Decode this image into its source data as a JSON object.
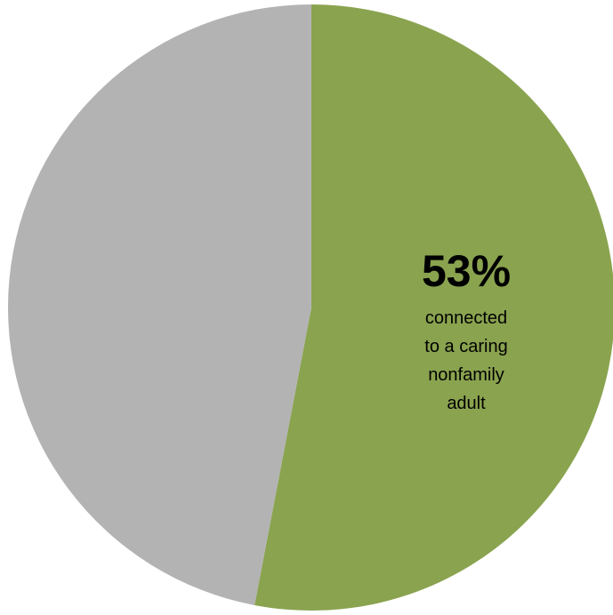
{
  "chart_data": {
    "type": "pie",
    "slices": [
      {
        "value": 53,
        "color": "#8aa34f",
        "value_label": "53%",
        "description": [
          "connected",
          "to a caring",
          "nonfamily",
          "adult"
        ]
      },
      {
        "value": 47,
        "color": "#b3b3b3",
        "value_label": "",
        "description": []
      }
    ],
    "start_angle_deg": 0,
    "direction": "clockwise",
    "legend": "none"
  }
}
